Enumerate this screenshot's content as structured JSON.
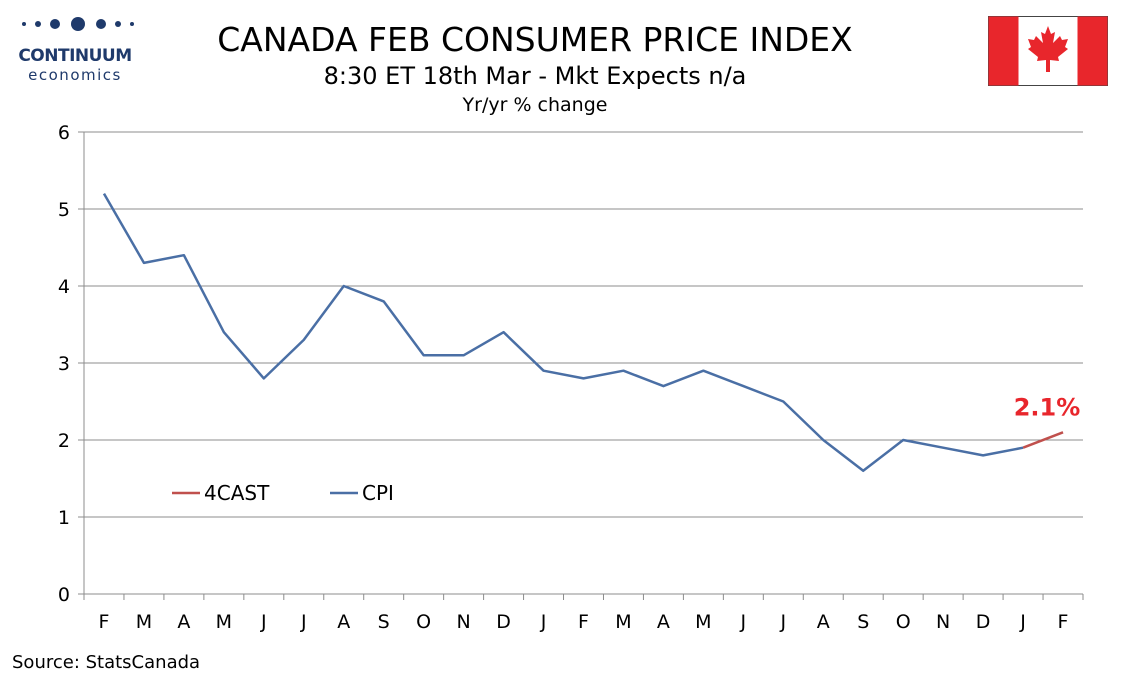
{
  "branding": {
    "logo_name": "CONTINUUM",
    "logo_sub": "economics",
    "logo_color": "#1f3a6b"
  },
  "header": {
    "title": "CANADA FEB CONSUMER PRICE INDEX",
    "subtitle": "8:30 ET 18th Mar - Mkt Expects n/a",
    "units": "Yr/yr % change"
  },
  "flag": {
    "icon": "canada-flag-icon",
    "red": "#e8262c",
    "white": "#ffffff"
  },
  "footer": {
    "source": "Source: StatsCanada"
  },
  "chart_data": {
    "type": "line",
    "categories": [
      "F",
      "M",
      "A",
      "M",
      "J",
      "J",
      "A",
      "S",
      "O",
      "N",
      "D",
      "J",
      "F",
      "M",
      "A",
      "M",
      "J",
      "J",
      "A",
      "S",
      "O",
      "N",
      "D",
      "J",
      "F"
    ],
    "series": [
      {
        "name": "CPI",
        "color": "#4a6fa5",
        "values": [
          5.2,
          4.3,
          4.4,
          3.4,
          2.8,
          3.3,
          4.0,
          3.8,
          3.1,
          3.1,
          3.4,
          2.9,
          2.8,
          2.9,
          2.7,
          2.9,
          2.7,
          2.5,
          2.0,
          1.6,
          2.0,
          1.9,
          1.8,
          1.9,
          null
        ]
      },
      {
        "name": "4CAST",
        "color": "#c0504d",
        "values": [
          null,
          null,
          null,
          null,
          null,
          null,
          null,
          null,
          null,
          null,
          null,
          null,
          null,
          null,
          null,
          null,
          null,
          null,
          null,
          null,
          null,
          null,
          null,
          1.9,
          2.1
        ]
      }
    ],
    "annotation": {
      "text": "2.1%",
      "category_index": 24,
      "value": 2.1
    },
    "ylim": [
      0,
      6
    ],
    "yticks": [
      "0",
      "1",
      "2",
      "3",
      "4",
      "5",
      "6"
    ],
    "grid": true,
    "legend_placement": "lower-left"
  }
}
